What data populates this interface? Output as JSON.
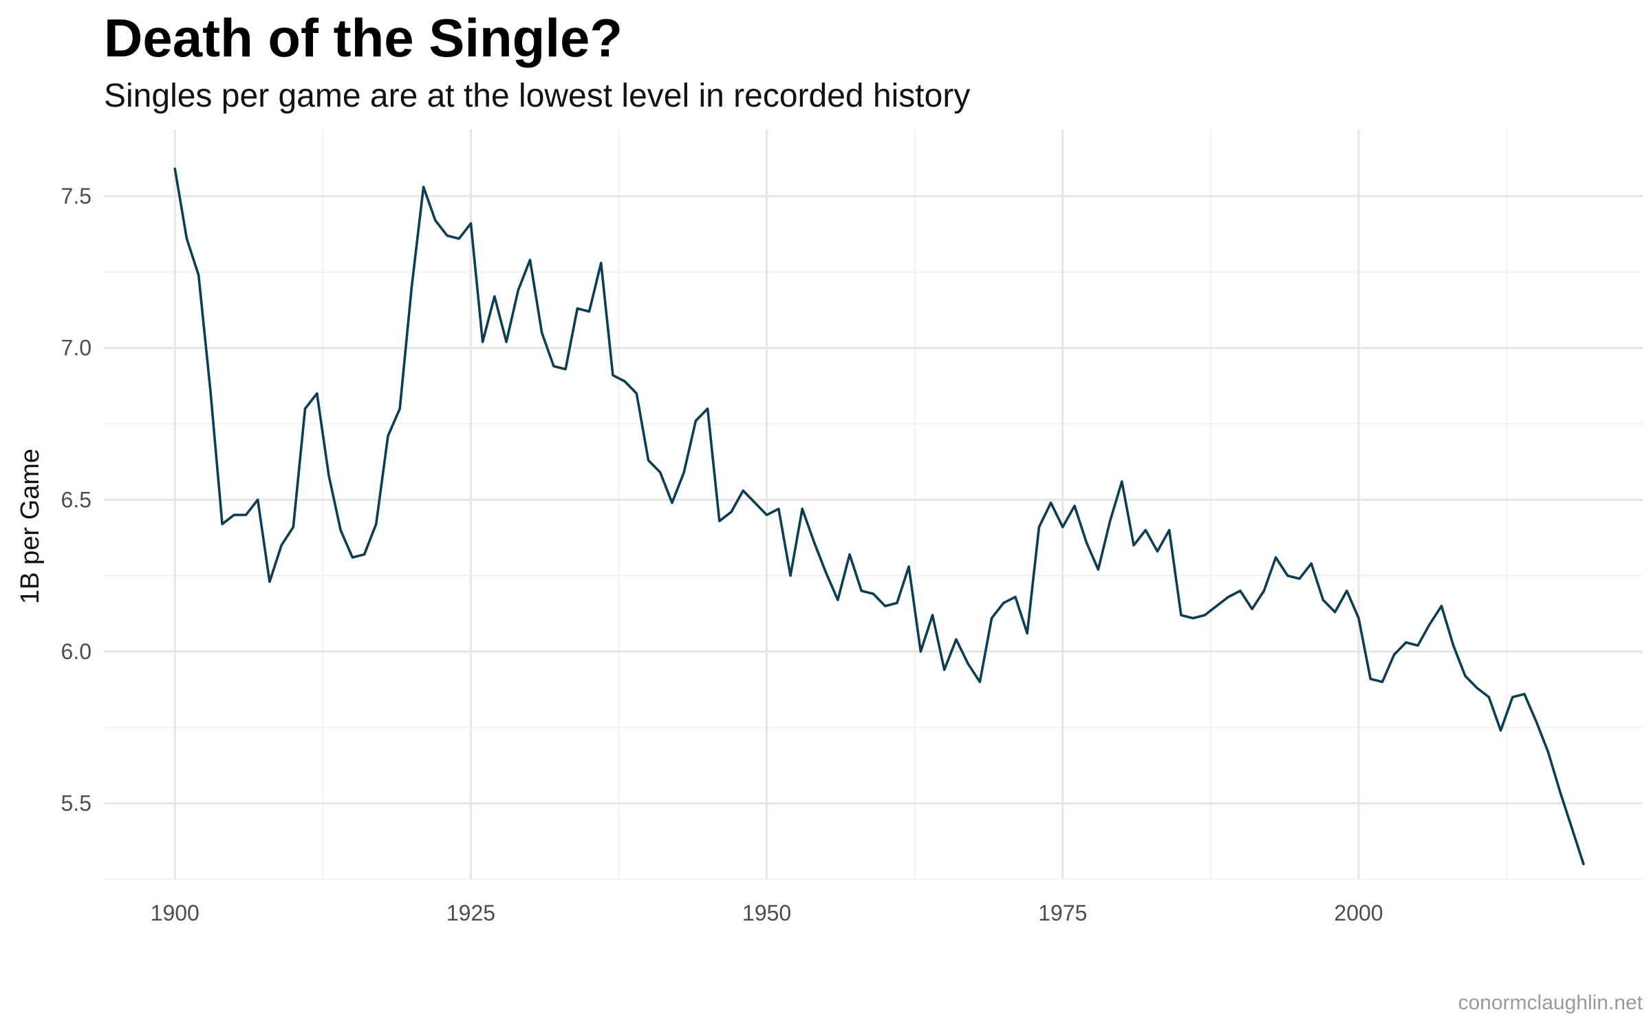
{
  "chart_data": {
    "type": "line",
    "title": "Death of the Single?",
    "subtitle": "Singles per game are at the lowest level in recorded history",
    "xlabel": "",
    "ylabel": "1B per Game",
    "caption": "conormclaughlin.net",
    "xlim": [
      1894,
      2024
    ],
    "ylim": [
      5.25,
      7.72
    ],
    "x_ticks": [
      1900,
      1925,
      1950,
      1975,
      2000
    ],
    "x_tick_labels": [
      "1900",
      "1925",
      "1950",
      "1975",
      "2000"
    ],
    "y_ticks": [
      5.5,
      6.0,
      6.5,
      7.0,
      7.5
    ],
    "y_tick_labels": [
      "5.5",
      "6.0",
      "6.5",
      "7.0",
      "7.5"
    ],
    "grid": true,
    "line_color": "#0b3d56",
    "x": [
      1900,
      1901,
      1902,
      1903,
      1904,
      1905,
      1906,
      1907,
      1908,
      1909,
      1910,
      1911,
      1912,
      1913,
      1914,
      1915,
      1916,
      1917,
      1918,
      1919,
      1920,
      1921,
      1922,
      1923,
      1924,
      1925,
      1926,
      1927,
      1928,
      1929,
      1930,
      1931,
      1932,
      1933,
      1934,
      1935,
      1936,
      1937,
      1938,
      1939,
      1940,
      1941,
      1942,
      1943,
      1944,
      1945,
      1946,
      1947,
      1948,
      1949,
      1950,
      1951,
      1952,
      1953,
      1954,
      1955,
      1956,
      1957,
      1958,
      1959,
      1960,
      1961,
      1962,
      1963,
      1964,
      1965,
      1966,
      1967,
      1968,
      1969,
      1970,
      1971,
      1972,
      1973,
      1974,
      1975,
      1976,
      1977,
      1978,
      1979,
      1980,
      1981,
      1982,
      1983,
      1984,
      1985,
      1986,
      1987,
      1988,
      1989,
      1990,
      1991,
      1992,
      1993,
      1994,
      1995,
      1996,
      1997,
      1998,
      1999,
      2000,
      2001,
      2002,
      2003,
      2004,
      2005,
      2006,
      2007,
      2008,
      2009,
      2010,
      2011,
      2012,
      2013,
      2014,
      2015,
      2016,
      2017,
      2018,
      2019
    ],
    "series": [
      {
        "values": [
          7.59,
          7.36,
          7.24,
          6.86,
          6.42,
          6.45,
          6.45,
          6.5,
          6.23,
          6.35,
          6.41,
          6.8,
          6.85,
          6.58,
          6.4,
          6.31,
          6.32,
          6.42,
          6.71,
          6.8,
          7.2,
          7.53,
          7.42,
          7.37,
          7.36,
          7.41,
          7.02,
          7.17,
          7.02,
          7.19,
          7.29,
          7.05,
          6.94,
          6.93,
          7.13,
          7.12,
          7.28,
          6.91,
          6.89,
          6.85,
          6.63,
          6.59,
          6.49,
          6.59,
          6.76,
          6.8,
          6.43,
          6.46,
          6.53,
          6.49,
          6.45,
          6.47,
          6.25,
          6.47,
          6.36,
          6.26,
          6.17,
          6.32,
          6.2,
          6.19,
          6.15,
          6.16,
          6.28,
          6.0,
          6.12,
          5.94,
          6.04,
          5.96,
          5.9,
          6.11,
          6.16,
          6.18,
          6.06,
          6.41,
          6.49,
          6.41,
          6.48,
          6.36,
          6.27,
          6.43,
          6.56,
          6.35,
          6.4,
          6.33,
          6.4,
          6.12,
          6.11,
          6.12,
          6.15,
          6.18,
          6.2,
          6.14,
          6.2,
          6.31,
          6.25,
          6.24,
          6.29,
          6.17,
          6.13,
          6.2,
          6.11,
          5.91,
          5.9,
          5.99,
          6.03,
          6.02,
          6.09,
          6.15,
          6.02,
          5.92,
          5.88,
          5.85,
          5.74,
          5.85,
          5.86,
          5.77,
          5.67,
          5.54,
          5.42,
          5.3
        ]
      }
    ]
  }
}
